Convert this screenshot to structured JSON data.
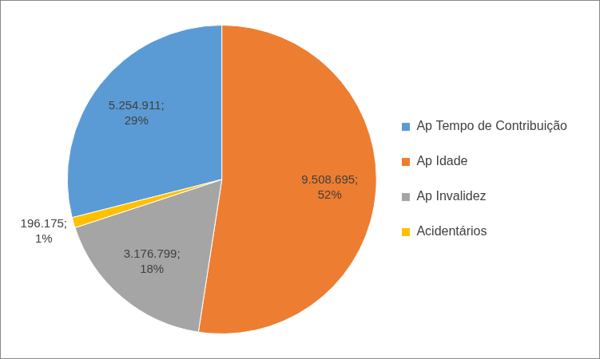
{
  "chart_data": {
    "type": "pie",
    "categories": [
      "Ap Tempo de Contribuição",
      "Ap Idade",
      "Ap Invalidez",
      "Acidentários"
    ],
    "values": [
      5254911,
      9508695,
      3176799,
      196175
    ],
    "value_labels": [
      "5.254.911; 29%",
      "9.508.695; 52%",
      "3.176.799; 18%",
      "196.175; 1%"
    ],
    "colors": [
      "#5b9bd5",
      "#ed7d31",
      "#a5a5a5",
      "#ffc000"
    ],
    "legend": "right",
    "data_labels": true
  }
}
